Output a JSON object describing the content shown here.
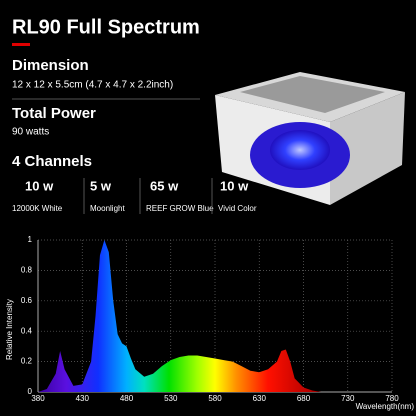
{
  "header": {
    "title": "RL90 Full Spectrum"
  },
  "specs": [
    {
      "label": "Dimension",
      "value": "12 x 12 x 5.5cm (4.7 x 4.7 x 2.2inch)"
    },
    {
      "label": "Total Power",
      "value": "90 watts"
    }
  ],
  "channels": {
    "title": "4 Channels",
    "items": [
      {
        "power": "10 w",
        "name": "12000K White"
      },
      {
        "power": "5 w",
        "name": "Moonlight"
      },
      {
        "power": "65 w",
        "name": "REEF GROW Blue"
      },
      {
        "power": "10 w",
        "name": "Vivid Color"
      }
    ]
  },
  "chart_data": {
    "type": "area",
    "x_label": "Wavelength(nm)",
    "y_label": "Relative Intensity",
    "x": [
      380,
      390,
      400,
      405,
      410,
      420,
      430,
      440,
      445,
      450,
      455,
      460,
      465,
      470,
      475,
      480,
      485,
      490,
      500,
      510,
      520,
      530,
      540,
      550,
      560,
      570,
      580,
      590,
      600,
      610,
      620,
      630,
      640,
      650,
      655,
      660,
      665,
      670,
      680,
      690,
      700
    ],
    "values": [
      0,
      0.02,
      0.12,
      0.27,
      0.15,
      0.04,
      0.05,
      0.2,
      0.5,
      0.9,
      1.0,
      0.92,
      0.6,
      0.38,
      0.32,
      0.3,
      0.22,
      0.15,
      0.1,
      0.12,
      0.17,
      0.21,
      0.23,
      0.24,
      0.24,
      0.23,
      0.22,
      0.21,
      0.2,
      0.17,
      0.14,
      0.13,
      0.15,
      0.2,
      0.27,
      0.28,
      0.2,
      0.09,
      0.03,
      0.01,
      0
    ],
    "xlim": [
      380,
      780
    ],
    "xticks": [
      380,
      430,
      480,
      530,
      580,
      630,
      680,
      730,
      780
    ],
    "ylim": [
      0,
      1
    ],
    "yticks": [
      0,
      0.2,
      0.4,
      0.6,
      0.8,
      1
    ],
    "grid": true
  }
}
